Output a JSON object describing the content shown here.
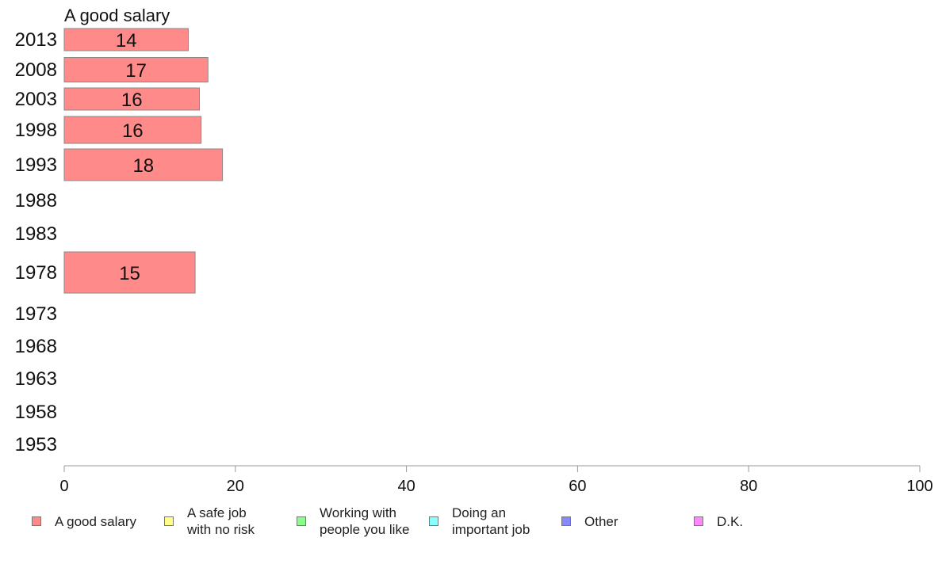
{
  "chart_data": {
    "type": "bar",
    "orientation": "horizontal",
    "title": "A good salary",
    "categories": [
      "2013",
      "2008",
      "2003",
      "1998",
      "1993",
      "1988",
      "1983",
      "1978",
      "1973",
      "1968",
      "1963",
      "1958",
      "1953"
    ],
    "series": [
      {
        "name": "A good salary",
        "color": "#ff8a8a",
        "values": [
          14.5,
          16.8,
          15.8,
          16.0,
          18.5,
          null,
          null,
          15.3,
          null,
          null,
          null,
          null,
          null
        ],
        "labels": [
          "14",
          "17",
          "16",
          "16",
          "18",
          "",
          "",
          "15",
          "",
          "",
          "",
          "",
          ""
        ]
      }
    ],
    "xlim": [
      0,
      100
    ],
    "xticks": [
      0,
      20,
      40,
      60,
      80,
      100
    ],
    "legend_position": "bottom",
    "grid": false,
    "legend": [
      {
        "label": "A good salary",
        "color": "#ff8a8a"
      },
      {
        "label": "A safe job\nwith no risk",
        "color": "#ffff88"
      },
      {
        "label": "Working with\npeople you like",
        "color": "#88ff88"
      },
      {
        "label": "Doing an\nimportant job",
        "color": "#88ffff"
      },
      {
        "label": "Other",
        "color": "#8888ff"
      },
      {
        "label": "D.K.",
        "color": "#ff88ff"
      }
    ]
  }
}
